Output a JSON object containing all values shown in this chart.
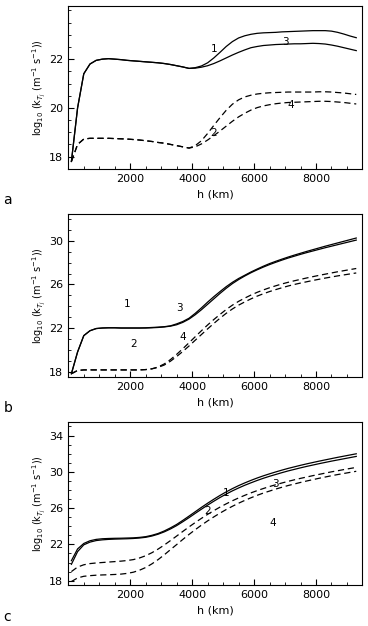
{
  "ylabel": "log$_{10}$ (k$_{T_j}$ (m$^{-1}$ s$^{-1}$))",
  "xlabel": "h (km)",
  "panel_labels": [
    "a",
    "b",
    "c"
  ],
  "panel_a": {
    "ylim": [
      17.5,
      24.2
    ],
    "yticks": [
      18,
      20,
      22
    ],
    "xticks": [
      2000,
      4000,
      6000,
      8000
    ],
    "solid1_x": [
      100,
      300,
      500,
      700,
      900,
      1100,
      1300,
      1500,
      1700,
      1900,
      2100,
      2300,
      2500,
      2700,
      2900,
      3100,
      3300,
      3500,
      3700,
      3900,
      4100,
      4300,
      4500,
      4700,
      4900,
      5100,
      5300,
      5500,
      5700,
      5900,
      6100,
      6300,
      6500,
      6700,
      6900,
      7100,
      7300,
      7500,
      7700,
      7900,
      8100,
      8300,
      8500,
      8700,
      8900,
      9100,
      9300
    ],
    "solid1_y": [
      17.8,
      20.0,
      21.4,
      21.8,
      21.95,
      22.0,
      22.02,
      22.0,
      21.98,
      21.95,
      21.93,
      21.91,
      21.89,
      21.87,
      21.85,
      21.82,
      21.78,
      21.73,
      21.68,
      21.62,
      21.65,
      21.72,
      21.85,
      22.05,
      22.28,
      22.52,
      22.72,
      22.87,
      22.96,
      23.02,
      23.06,
      23.08,
      23.09,
      23.1,
      23.12,
      23.13,
      23.14,
      23.15,
      23.16,
      23.17,
      23.17,
      23.17,
      23.15,
      23.1,
      23.03,
      22.95,
      22.88
    ],
    "solid2_x": [
      100,
      300,
      500,
      700,
      900,
      1100,
      1300,
      1500,
      1700,
      1900,
      2100,
      2300,
      2500,
      2700,
      2900,
      3100,
      3300,
      3500,
      3700,
      3900,
      4100,
      4300,
      4500,
      4700,
      4900,
      5100,
      5300,
      5500,
      5700,
      5900,
      6100,
      6300,
      6500,
      6700,
      6900,
      7100,
      7300,
      7500,
      7700,
      7900,
      8100,
      8300,
      8500,
      8700,
      8900,
      9100,
      9300
    ],
    "solid2_y": [
      17.8,
      20.0,
      21.4,
      21.8,
      21.95,
      22.0,
      22.02,
      22.0,
      21.98,
      21.95,
      21.93,
      21.91,
      21.89,
      21.87,
      21.85,
      21.82,
      21.78,
      21.73,
      21.68,
      21.62,
      21.63,
      21.67,
      21.73,
      21.82,
      21.93,
      22.05,
      22.17,
      22.28,
      22.38,
      22.47,
      22.52,
      22.56,
      22.58,
      22.6,
      22.61,
      22.62,
      22.63,
      22.63,
      22.64,
      22.65,
      22.64,
      22.62,
      22.58,
      22.53,
      22.47,
      22.41,
      22.35
    ],
    "dashed1_x": [
      100,
      300,
      500,
      700,
      900,
      1100,
      1300,
      1500,
      1700,
      1900,
      2100,
      2300,
      2500,
      2700,
      2900,
      3100,
      3300,
      3500,
      3700,
      3900,
      4100,
      4300,
      4500,
      4700,
      4900,
      5100,
      5300,
      5500,
      5700,
      5900,
      6100,
      6300,
      6500,
      6700,
      6900,
      7100,
      7300,
      7500,
      7700,
      7900,
      8100,
      8300,
      8500,
      8700,
      8900,
      9100,
      9300
    ],
    "dashed1_y": [
      17.8,
      18.5,
      18.72,
      18.75,
      18.75,
      18.75,
      18.75,
      18.74,
      18.73,
      18.72,
      18.7,
      18.68,
      18.65,
      18.62,
      18.58,
      18.55,
      18.5,
      18.45,
      18.4,
      18.35,
      18.45,
      18.65,
      18.95,
      19.28,
      19.6,
      19.9,
      20.15,
      20.33,
      20.45,
      20.52,
      20.57,
      20.6,
      20.62,
      20.63,
      20.64,
      20.65,
      20.65,
      20.65,
      20.65,
      20.65,
      20.66,
      20.66,
      20.65,
      20.63,
      20.61,
      20.58,
      20.55
    ],
    "dashed2_x": [
      100,
      300,
      500,
      700,
      900,
      1100,
      1300,
      1500,
      1700,
      1900,
      2100,
      2300,
      2500,
      2700,
      2900,
      3100,
      3300,
      3500,
      3700,
      3900,
      4100,
      4300,
      4500,
      4700,
      4900,
      5100,
      5300,
      5500,
      5700,
      5900,
      6100,
      6300,
      6500,
      6700,
      6900,
      7100,
      7300,
      7500,
      7700,
      7900,
      8100,
      8300,
      8500,
      8700,
      8900,
      9100,
      9300
    ],
    "dashed2_y": [
      17.8,
      18.5,
      18.72,
      18.75,
      18.75,
      18.75,
      18.75,
      18.74,
      18.73,
      18.72,
      18.7,
      18.68,
      18.65,
      18.62,
      18.58,
      18.55,
      18.5,
      18.45,
      18.4,
      18.35,
      18.4,
      18.52,
      18.68,
      18.86,
      19.05,
      19.25,
      19.45,
      19.63,
      19.78,
      19.91,
      20.01,
      20.08,
      20.13,
      20.17,
      20.2,
      20.22,
      20.23,
      20.24,
      20.25,
      20.26,
      20.27,
      20.27,
      20.26,
      20.24,
      20.22,
      20.19,
      20.16
    ],
    "ann_1_x": 4700,
    "ann_1_y": 22.4,
    "ann_3_x": 7000,
    "ann_3_y": 22.72,
    "ann_2_x": 4700,
    "ann_2_y": 18.95,
    "ann_4_x": 7200,
    "ann_4_y": 20.1
  },
  "panel_b": {
    "ylim": [
      17.5,
      32.5
    ],
    "yticks": [
      18,
      22,
      26,
      30
    ],
    "xticks": [
      2000,
      4000,
      6000,
      8000
    ],
    "solid1_x": [
      100,
      300,
      500,
      700,
      900,
      1100,
      1300,
      1500,
      1700,
      1900,
      2100,
      2300,
      2500,
      2700,
      2900,
      3100,
      3300,
      3500,
      3700,
      3900,
      4100,
      4300,
      4500,
      4700,
      4900,
      5100,
      5300,
      5500,
      5700,
      5900,
      6100,
      6300,
      6500,
      6700,
      6900,
      7100,
      7300,
      7500,
      7700,
      7900,
      8100,
      8300,
      8500,
      8700,
      8900,
      9100,
      9300
    ],
    "solid1_y": [
      17.8,
      19.8,
      21.3,
      21.75,
      21.95,
      22.0,
      22.02,
      22.02,
      22.0,
      22.0,
      22.0,
      22.0,
      22.02,
      22.05,
      22.08,
      22.12,
      22.2,
      22.38,
      22.6,
      22.9,
      23.35,
      23.85,
      24.38,
      24.88,
      25.35,
      25.8,
      26.2,
      26.55,
      26.85,
      27.15,
      27.42,
      27.68,
      27.92,
      28.13,
      28.33,
      28.52,
      28.7,
      28.87,
      29.04,
      29.2,
      29.36,
      29.52,
      29.67,
      29.82,
      29.97,
      30.12,
      30.27
    ],
    "solid2_x": [
      100,
      300,
      500,
      700,
      900,
      1100,
      1300,
      1500,
      1700,
      1900,
      2100,
      2300,
      2500,
      2700,
      2900,
      3100,
      3300,
      3500,
      3700,
      3900,
      4100,
      4300,
      4500,
      4700,
      4900,
      5100,
      5300,
      5500,
      5700,
      5900,
      6100,
      6300,
      6500,
      6700,
      6900,
      7100,
      7300,
      7500,
      7700,
      7900,
      8100,
      8300,
      8500,
      8700,
      8900,
      9100,
      9300
    ],
    "solid2_y": [
      17.8,
      19.8,
      21.3,
      21.75,
      21.95,
      22.0,
      22.02,
      22.02,
      22.0,
      22.0,
      22.0,
      22.0,
      22.0,
      22.02,
      22.05,
      22.1,
      22.17,
      22.3,
      22.52,
      22.82,
      23.22,
      23.68,
      24.18,
      24.68,
      25.18,
      25.65,
      26.08,
      26.45,
      26.78,
      27.08,
      27.35,
      27.6,
      27.83,
      28.04,
      28.24,
      28.43,
      28.6,
      28.77,
      28.93,
      29.08,
      29.23,
      29.38,
      29.52,
      29.66,
      29.8,
      29.94,
      30.08
    ],
    "dashed1_x": [
      100,
      300,
      500,
      700,
      900,
      1100,
      1300,
      1500,
      1700,
      1900,
      2100,
      2300,
      2500,
      2700,
      2900,
      3100,
      3300,
      3500,
      3700,
      3900,
      4100,
      4300,
      4500,
      4700,
      4900,
      5100,
      5300,
      5500,
      5700,
      5900,
      6100,
      6300,
      6500,
      6700,
      6900,
      7100,
      7300,
      7500,
      7700,
      7900,
      8100,
      8300,
      8500,
      8700,
      8900,
      9100,
      9300
    ],
    "dashed1_y": [
      17.8,
      18.1,
      18.15,
      18.15,
      18.15,
      18.15,
      18.15,
      18.15,
      18.15,
      18.15,
      18.15,
      18.15,
      18.18,
      18.25,
      18.42,
      18.7,
      19.1,
      19.58,
      20.1,
      20.65,
      21.2,
      21.75,
      22.28,
      22.78,
      23.25,
      23.7,
      24.1,
      24.45,
      24.75,
      25.03,
      25.28,
      25.5,
      25.7,
      25.88,
      26.05,
      26.2,
      26.34,
      26.47,
      26.6,
      26.72,
      26.84,
      26.95,
      27.06,
      27.17,
      27.27,
      27.37,
      27.47
    ],
    "dashed2_x": [
      100,
      300,
      500,
      700,
      900,
      1100,
      1300,
      1500,
      1700,
      1900,
      2100,
      2300,
      2500,
      2700,
      2900,
      3100,
      3300,
      3500,
      3700,
      3900,
      4100,
      4300,
      4500,
      4700,
      4900,
      5100,
      5300,
      5500,
      5700,
      5900,
      6100,
      6300,
      6500,
      6700,
      6900,
      7100,
      7300,
      7500,
      7700,
      7900,
      8100,
      8300,
      8500,
      8700,
      8900,
      9100,
      9300
    ],
    "dashed2_y": [
      17.8,
      18.1,
      18.15,
      18.15,
      18.15,
      18.15,
      18.15,
      18.15,
      18.15,
      18.15,
      18.15,
      18.15,
      18.18,
      18.25,
      18.38,
      18.6,
      18.95,
      19.38,
      19.85,
      20.35,
      20.88,
      21.4,
      21.92,
      22.42,
      22.9,
      23.35,
      23.75,
      24.1,
      24.4,
      24.68,
      24.93,
      25.15,
      25.35,
      25.53,
      25.7,
      25.86,
      26.0,
      26.13,
      26.25,
      26.37,
      26.48,
      26.59,
      26.69,
      26.79,
      26.88,
      26.97,
      27.06
    ],
    "ann_1_x": 1900,
    "ann_1_y": 24.2,
    "ann_3_x": 3600,
    "ann_3_y": 23.8,
    "ann_2_x": 2100,
    "ann_2_y": 20.5,
    "ann_4_x": 3700,
    "ann_4_y": 21.2
  },
  "panel_c": {
    "ylim": [
      17.5,
      35.5
    ],
    "yticks": [
      18,
      22,
      26,
      30,
      34
    ],
    "xticks": [
      2000,
      4000,
      6000,
      8000
    ],
    "solid1_x": [
      100,
      300,
      500,
      700,
      900,
      1100,
      1300,
      1500,
      1700,
      1900,
      2100,
      2300,
      2500,
      2700,
      2900,
      3100,
      3300,
      3500,
      3700,
      3900,
      4100,
      4300,
      4500,
      4700,
      4900,
      5100,
      5300,
      5500,
      5700,
      5900,
      6100,
      6300,
      6500,
      6700,
      6900,
      7100,
      7300,
      7500,
      7700,
      7900,
      8100,
      8300,
      8500,
      8700,
      8900,
      9100,
      9300
    ],
    "solid1_y": [
      20.2,
      21.5,
      22.1,
      22.4,
      22.55,
      22.62,
      22.65,
      22.67,
      22.68,
      22.7,
      22.72,
      22.77,
      22.85,
      23.0,
      23.2,
      23.48,
      23.82,
      24.2,
      24.65,
      25.12,
      25.6,
      26.08,
      26.54,
      26.98,
      27.4,
      27.79,
      28.15,
      28.48,
      28.78,
      29.06,
      29.32,
      29.56,
      29.78,
      29.99,
      30.19,
      30.38,
      30.55,
      30.72,
      30.88,
      31.03,
      31.18,
      31.32,
      31.46,
      31.6,
      31.73,
      31.86,
      31.99
    ],
    "solid2_x": [
      100,
      300,
      500,
      700,
      900,
      1100,
      1300,
      1500,
      1700,
      1900,
      2100,
      2300,
      2500,
      2700,
      2900,
      3100,
      3300,
      3500,
      3700,
      3900,
      4100,
      4300,
      4500,
      4700,
      4900,
      5100,
      5300,
      5500,
      5700,
      5900,
      6100,
      6300,
      6500,
      6700,
      6900,
      7100,
      7300,
      7500,
      7700,
      7900,
      8100,
      8300,
      8500,
      8700,
      8900,
      9100,
      9300
    ],
    "solid2_y": [
      19.8,
      21.2,
      21.95,
      22.25,
      22.42,
      22.5,
      22.55,
      22.58,
      22.6,
      22.62,
      22.65,
      22.7,
      22.78,
      22.92,
      23.12,
      23.38,
      23.7,
      24.07,
      24.5,
      24.95,
      25.42,
      25.88,
      26.33,
      26.76,
      27.17,
      27.55,
      27.9,
      28.22,
      28.52,
      28.79,
      29.05,
      29.29,
      29.51,
      29.71,
      29.91,
      30.1,
      30.27,
      30.44,
      30.6,
      30.75,
      30.9,
      31.04,
      31.18,
      31.31,
      31.44,
      31.57,
      31.7
    ],
    "dashed1_x": [
      100,
      300,
      500,
      700,
      900,
      1100,
      1300,
      1500,
      1700,
      1900,
      2100,
      2300,
      2500,
      2700,
      2900,
      3100,
      3300,
      3500,
      3700,
      3900,
      4100,
      4300,
      4500,
      4700,
      4900,
      5100,
      5300,
      5500,
      5700,
      5900,
      6100,
      6300,
      6500,
      6700,
      6900,
      7100,
      7300,
      7500,
      7700,
      7900,
      8100,
      8300,
      8500,
      8700,
      8900,
      9100,
      9300
    ],
    "dashed1_y": [
      19.0,
      19.5,
      19.75,
      19.88,
      19.95,
      20.0,
      20.05,
      20.1,
      20.15,
      20.22,
      20.32,
      20.5,
      20.75,
      21.08,
      21.48,
      21.93,
      22.42,
      22.92,
      23.43,
      23.93,
      24.41,
      24.87,
      25.31,
      25.72,
      26.11,
      26.47,
      26.81,
      27.12,
      27.41,
      27.68,
      27.93,
      28.16,
      28.38,
      28.58,
      28.77,
      28.95,
      29.12,
      29.28,
      29.43,
      29.58,
      29.72,
      29.86,
      30.0,
      30.12,
      30.25,
      30.37,
      30.49
    ],
    "dashed2_x": [
      100,
      300,
      500,
      700,
      900,
      1100,
      1300,
      1500,
      1700,
      1900,
      2100,
      2300,
      2500,
      2700,
      2900,
      3100,
      3300,
      3500,
      3700,
      3900,
      4100,
      4300,
      4500,
      4700,
      4900,
      5100,
      5300,
      5500,
      5700,
      5900,
      6100,
      6300,
      6500,
      6700,
      6900,
      7100,
      7300,
      7500,
      7700,
      7900,
      8100,
      8300,
      8500,
      8700,
      8900,
      9100,
      9300
    ],
    "dashed2_y": [
      17.9,
      18.3,
      18.48,
      18.55,
      18.6,
      18.63,
      18.65,
      18.68,
      18.72,
      18.8,
      18.93,
      19.15,
      19.45,
      19.85,
      20.32,
      20.85,
      21.42,
      21.98,
      22.55,
      23.1,
      23.62,
      24.12,
      24.59,
      25.03,
      25.45,
      25.84,
      26.2,
      26.54,
      26.85,
      27.14,
      27.41,
      27.66,
      27.88,
      28.1,
      28.3,
      28.49,
      28.66,
      28.83,
      28.99,
      29.14,
      29.29,
      29.43,
      29.57,
      29.7,
      29.82,
      29.94,
      30.06
    ],
    "ann_1_x": 5100,
    "ann_1_y": 27.65,
    "ann_2_x": 4500,
    "ann_2_y": 25.65,
    "ann_3_x": 6700,
    "ann_3_y": 28.62,
    "ann_4_x": 6600,
    "ann_4_y": 24.38
  }
}
